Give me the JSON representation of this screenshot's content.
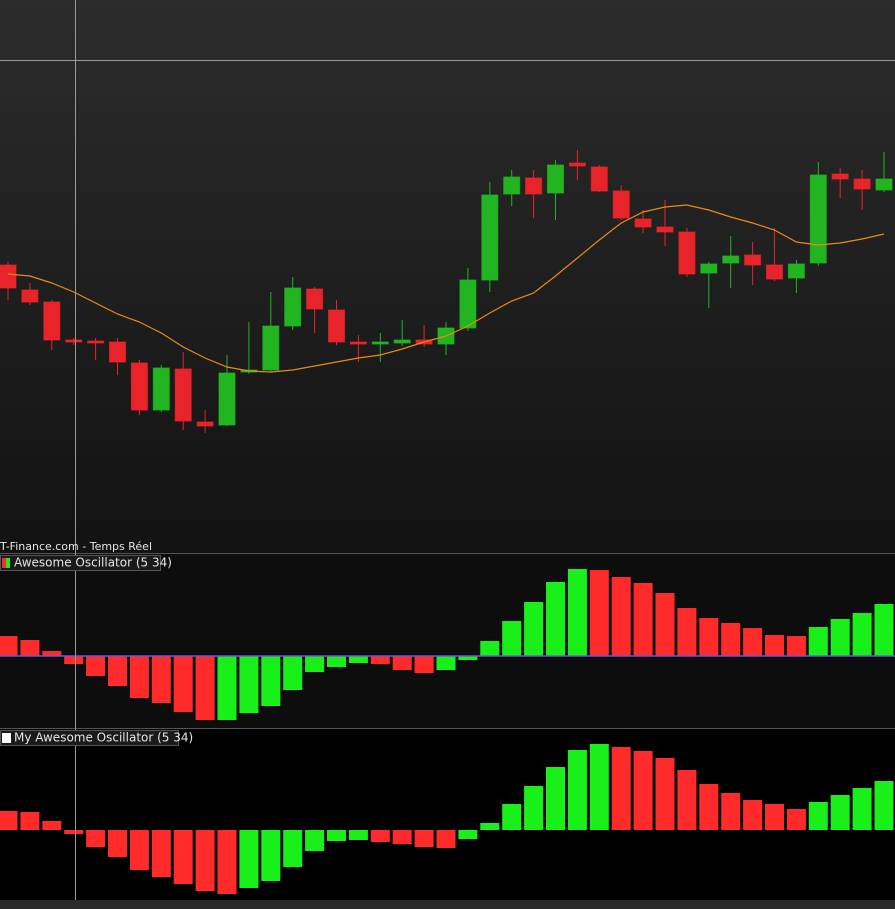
{
  "chart_data": [
    {
      "type": "candlestick",
      "source": "T-Finance.com - Temps Réel",
      "open": [
        335,
        310,
        298,
        260,
        259,
        258,
        237,
        190,
        231,
        178,
        175,
        228,
        230,
        274,
        311,
        290,
        258,
        256,
        257,
        260,
        256,
        272,
        320,
        406,
        422,
        407,
        437,
        433,
        409,
        381,
        373,
        368,
        327,
        337,
        345,
        335,
        322,
        337,
        426,
        421,
        410
      ],
      "high": [
        338,
        317,
        300,
        262,
        262,
        262,
        240,
        235,
        248,
        190,
        245,
        278,
        308,
        323,
        313,
        300,
        265,
        267,
        280,
        275,
        278,
        332,
        418,
        430,
        430,
        440,
        450,
        435,
        415,
        390,
        400,
        372,
        338,
        364,
        358,
        372,
        340,
        438,
        432,
        430,
        448
      ],
      "low": [
        300,
        295,
        250,
        255,
        240,
        225,
        185,
        188,
        170,
        167,
        174,
        226,
        228,
        270,
        267,
        255,
        238,
        238,
        254,
        253,
        245,
        269,
        308,
        394,
        382,
        380,
        420,
        408,
        380,
        367,
        354,
        323,
        292,
        312,
        315,
        319,
        307,
        334,
        402,
        390,
        408
      ],
      "close": [
        312,
        298,
        260,
        258,
        257,
        238,
        190,
        232,
        179,
        174,
        227,
        230,
        274,
        312,
        291,
        258,
        256,
        258,
        260,
        256,
        272,
        320,
        405,
        423,
        406,
        435,
        434,
        409,
        382,
        373,
        368,
        326,
        336,
        344,
        335,
        321,
        336,
        425,
        421,
        411,
        421
      ],
      "up_color": "#21b521",
      "down_color": "#e8242a",
      "ma": {
        "color": "#e8891c",
        "values": [
          326,
          324,
          317,
          308,
          297,
          286,
          278,
          267,
          253,
          242,
          233,
          229,
          228,
          230,
          234,
          238,
          242,
          245,
          251,
          258,
          264,
          274,
          287,
          299,
          307,
          324,
          342,
          360,
          377,
          388,
          393,
          395,
          390,
          383,
          377,
          370,
          358,
          355,
          357,
          361,
          366
        ]
      },
      "ylim": [
        47,
        600
      ]
    },
    {
      "type": "bar",
      "title": "Awesome Oscillator (5 34)",
      "values": [
        20,
        16,
        5,
        -8,
        -20,
        -30,
        -42,
        -47,
        -56,
        -64,
        -64,
        -57,
        -50,
        -34,
        -16,
        -11,
        -7,
        -8,
        -14,
        -17,
        -14,
        -4,
        15,
        35,
        54,
        74,
        87,
        86,
        79,
        73,
        63,
        48,
        38,
        33,
        28,
        21,
        20,
        29,
        37,
        43,
        52
      ],
      "colors": [
        "#ff2b2b",
        "#ff2b2b",
        "#ff2b2b",
        "#ff2b2b",
        "#ff2b2b",
        "#ff2b2b",
        "#ff2b2b",
        "#ff2b2b",
        "#ff2b2b",
        "#ff2b2b",
        "#19f019",
        "#19f019",
        "#19f019",
        "#19f019",
        "#19f019",
        "#19f019",
        "#19f019",
        "#ff2b2b",
        "#ff2b2b",
        "#ff2b2b",
        "#19f019",
        "#19f019",
        "#19f019",
        "#19f019",
        "#19f019",
        "#19f019",
        "#19f019",
        "#ff2b2b",
        "#ff2b2b",
        "#ff2b2b",
        "#ff2b2b",
        "#ff2b2b",
        "#ff2b2b",
        "#ff2b2b",
        "#ff2b2b",
        "#ff2b2b",
        "#ff2b2b",
        "#19f019",
        "#19f019",
        "#19f019",
        "#19f019"
      ],
      "zero_line_color": "#7a50e0",
      "ylim": [
        -72,
        102
      ]
    },
    {
      "type": "bar",
      "title": "My Awesome Oscillator (5 34)",
      "values": [
        19,
        18,
        9,
        -4,
        -17,
        -27,
        -40,
        -47,
        -54,
        -61,
        -64,
        -58,
        -51,
        -37,
        -21,
        -11,
        -10,
        -12,
        -14,
        -17,
        -18,
        -9,
        7,
        26,
        44,
        63,
        80,
        86,
        83,
        79,
        72,
        60,
        46,
        37,
        30,
        26,
        21,
        28,
        35,
        42,
        49
      ],
      "colors": [
        "#ff2b2b",
        "#ff2b2b",
        "#ff2b2b",
        "#ff2b2b",
        "#ff2b2b",
        "#ff2b2b",
        "#ff2b2b",
        "#ff2b2b",
        "#ff2b2b",
        "#ff2b2b",
        "#ff2b2b",
        "#19f019",
        "#19f019",
        "#19f019",
        "#19f019",
        "#19f019",
        "#19f019",
        "#ff2b2b",
        "#ff2b2b",
        "#ff2b2b",
        "#ff2b2b",
        "#19f019",
        "#19f019",
        "#19f019",
        "#19f019",
        "#19f019",
        "#19f019",
        "#19f019",
        "#ff2b2b",
        "#ff2b2b",
        "#ff2b2b",
        "#ff2b2b",
        "#ff2b2b",
        "#ff2b2b",
        "#ff2b2b",
        "#ff2b2b",
        "#ff2b2b",
        "#19f019",
        "#19f019",
        "#19f019",
        "#19f019"
      ],
      "ylim": [
        -70,
        101
      ]
    }
  ]
}
